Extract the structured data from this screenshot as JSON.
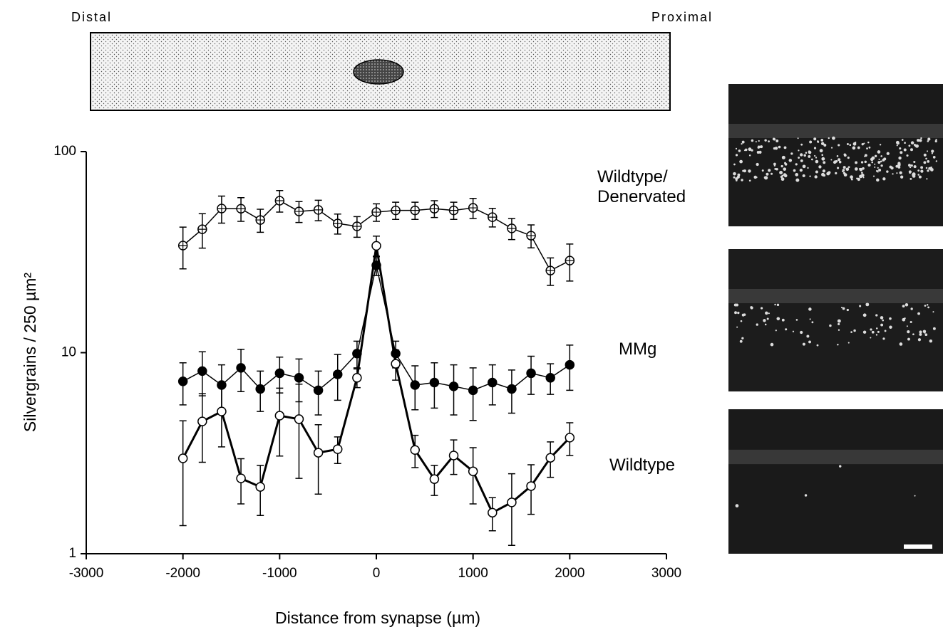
{
  "header": {
    "left": "Distal",
    "right": "Proximal"
  },
  "chart_data": {
    "type": "line",
    "xlabel": "Distance from synapse (µm)",
    "ylabel": "Silvergrains / 250 µm²",
    "x": [
      -2000,
      -1800,
      -1600,
      -1400,
      -1200,
      -1000,
      -800,
      -600,
      -400,
      -200,
      0,
      200,
      400,
      600,
      800,
      1000,
      1200,
      1400,
      1600,
      1800,
      2000
    ],
    "xlim": [
      -3000,
      3000
    ],
    "xticks": [
      -3000,
      -2000,
      -1000,
      0,
      1000,
      2000,
      3000
    ],
    "ylim": [
      1,
      100
    ],
    "yticks": [
      1,
      10,
      100
    ],
    "log_y": true,
    "series": [
      {
        "name": "Wildtype/ Denervated",
        "color": "#000000",
        "marker": "crosshair",
        "line_width": 1.5,
        "values": [
          34.1,
          41.1,
          52.1,
          52,
          45.7,
          57,
          50.4,
          51.3,
          43.9,
          42.5,
          50,
          51,
          51,
          52,
          51,
          52.5,
          47.2,
          41.5,
          38.2,
          25.6,
          28.7
        ],
        "errors": [
          8,
          8,
          8,
          7,
          6,
          7,
          6,
          6,
          5,
          5,
          5,
          5,
          5,
          5,
          5,
          6,
          5,
          5,
          5,
          4,
          6
        ]
      },
      {
        "name": "MMg",
        "color": "#000000",
        "marker": "filled",
        "line_width": 1.5,
        "values": [
          7.2,
          8.1,
          6.9,
          8.4,
          6.6,
          7.9,
          7.5,
          6.5,
          7.8,
          9.9,
          27.2,
          9.9,
          6.9,
          7.1,
          6.8,
          6.5,
          7.1,
          6.6,
          7.9,
          7.5,
          8.7
        ],
        "errors": [
          1.7,
          2.0,
          1.8,
          2.0,
          1.5,
          1.6,
          1.8,
          1.6,
          2.0,
          1.5,
          3,
          1.5,
          1.7,
          1.8,
          1.9,
          1.9,
          1.6,
          1.6,
          1.7,
          1.3,
          2.2
        ]
      },
      {
        "name": "Wildtype",
        "color": "#000000",
        "marker": "open",
        "line_width": 3,
        "values": [
          2.98,
          4.55,
          5.1,
          2.37,
          2.15,
          4.86,
          4.67,
          3.18,
          3.31,
          7.5,
          34,
          8.8,
          3.28,
          2.35,
          3.08,
          2.57,
          1.6,
          1.8,
          2.17,
          3.0,
          3.78
        ],
        "errors": [
          1.6,
          1.7,
          1.7,
          0.6,
          0.6,
          1.8,
          2.3,
          1.2,
          0.5,
          0.8,
          4,
          1.5,
          0.6,
          0.4,
          0.6,
          0.8,
          0.3,
          0.7,
          0.6,
          0.6,
          0.7
        ]
      }
    ]
  }
}
